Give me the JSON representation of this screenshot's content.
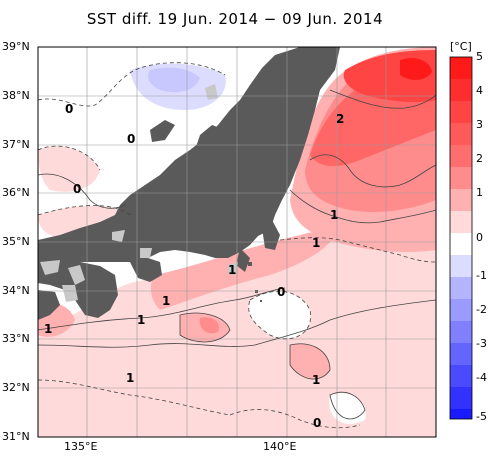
{
  "title": "SST diff. 19 Jun. 2014 − 09 Jun. 2014",
  "lat_labels": [
    "39°N",
    "38°N",
    "37°N",
    "36°N",
    "35°N",
    "34°N",
    "33°N",
    "32°N",
    "31°N"
  ],
  "lon_labels": [
    "135°E",
    "140°E"
  ],
  "colorbar": {
    "unit": "[°C]",
    "ticks": [
      "5",
      "4",
      "3",
      "2",
      "1",
      "0",
      "-1",
      "-2",
      "-3",
      "-4",
      "-5"
    ],
    "colors": [
      "#ff1a1a",
      "#ff4444",
      "#ff6666",
      "#ff8c8c",
      "#ffb0b0",
      "#ffdada",
      "#ffffff",
      "#dcdcff",
      "#b4b4ff",
      "#8c8cff",
      "#6464ff",
      "#3c3cff",
      "#1a1aff"
    ]
  },
  "contour_labels": [
    {
      "text": "0"
    },
    {
      "text": "0"
    },
    {
      "text": "0"
    },
    {
      "text": "2"
    },
    {
      "text": "1"
    },
    {
      "text": "1"
    },
    {
      "text": "1"
    },
    {
      "text": "0"
    },
    {
      "text": "1"
    },
    {
      "text": "1"
    },
    {
      "text": "1"
    },
    {
      "text": "1"
    },
    {
      "text": "1"
    },
    {
      "text": "0"
    }
  ],
  "colors": {
    "land": "#5a5a5a",
    "lake": "#c8c8c8",
    "grid": "#999999"
  }
}
